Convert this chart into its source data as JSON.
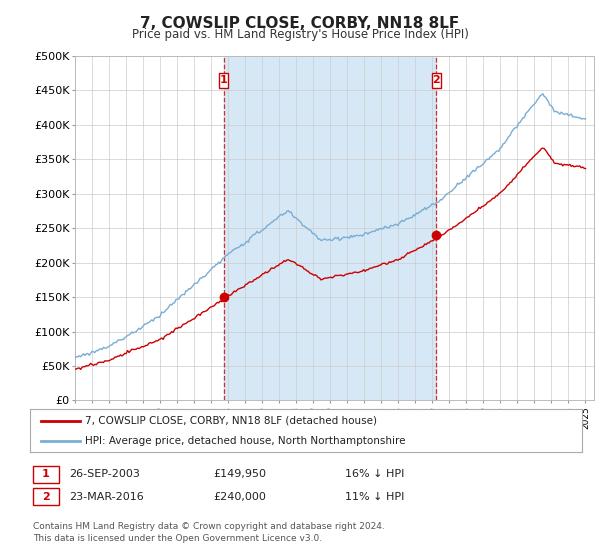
{
  "title": "7, COWSLIP CLOSE, CORBY, NN18 8LF",
  "subtitle": "Price paid vs. HM Land Registry's House Price Index (HPI)",
  "ylabel_ticks": [
    "£0",
    "£50K",
    "£100K",
    "£150K",
    "£200K",
    "£250K",
    "£300K",
    "£350K",
    "£400K",
    "£450K",
    "£500K"
  ],
  "ylim": [
    0,
    500000
  ],
  "xlim_start": 1995.0,
  "xlim_end": 2025.5,
  "sale1_x": 2003.74,
  "sale1_y": 149950,
  "sale1_label": "1",
  "sale1_date": "26-SEP-2003",
  "sale1_price": "£149,950",
  "sale1_hpi": "16% ↓ HPI",
  "sale2_x": 2016.23,
  "sale2_y": 240000,
  "sale2_label": "2",
  "sale2_date": "23-MAR-2016",
  "sale2_price": "£240,000",
  "sale2_hpi": "11% ↓ HPI",
  "line1_color": "#cc0000",
  "line2_color": "#7aadd4",
  "fill_color": "#d6e8f5",
  "legend1_label": "7, COWSLIP CLOSE, CORBY, NN18 8LF (detached house)",
  "legend2_label": "HPI: Average price, detached house, North Northamptonshire",
  "footer": "Contains HM Land Registry data © Crown copyright and database right 2024.\nThis data is licensed under the Open Government Licence v3.0.",
  "background_color": "#ffffff",
  "grid_color": "#cccccc"
}
